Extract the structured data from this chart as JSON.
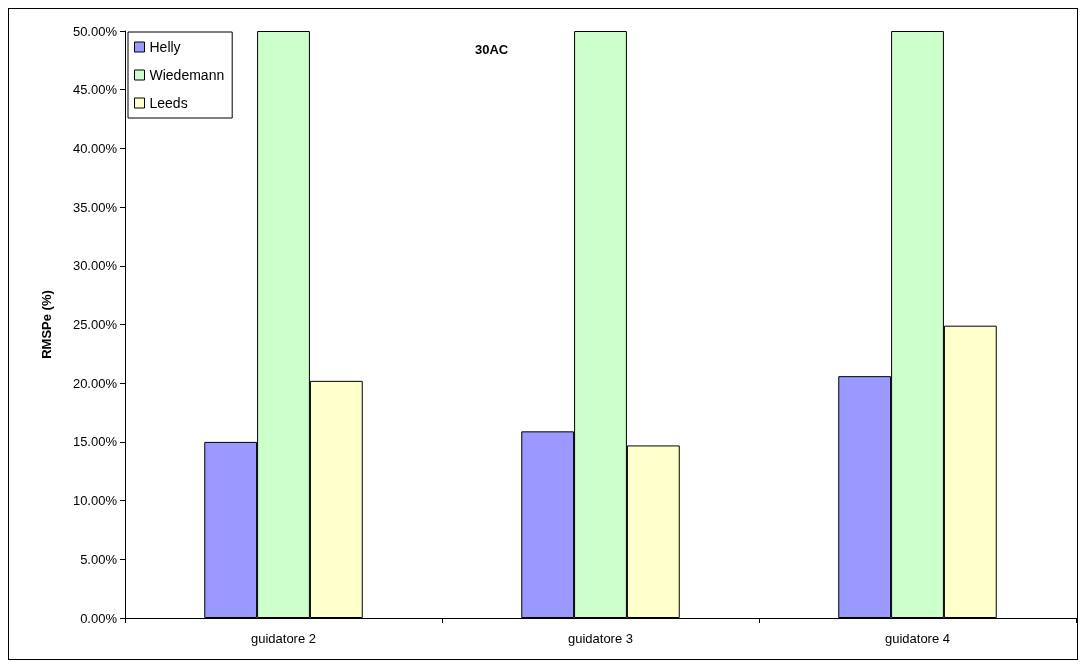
{
  "chart_data": {
    "type": "bar",
    "title": "30AC",
    "ylabel": "RMSPe (%)",
    "categories": [
      "guidatore 2",
      "guidatore 3",
      "guidatore 4"
    ],
    "series": [
      {
        "name": "Helly",
        "color": "#9999ff",
        "values": [
          15.0,
          15.9,
          20.6
        ]
      },
      {
        "name": "Wiedemann",
        "color": "#ccffcc",
        "values": [
          50,
          50,
          50
        ]
      },
      {
        "name": "Leeds",
        "color": "#ffffcc",
        "values": [
          20.2,
          14.7,
          24.9
        ]
      }
    ],
    "ylim": [
      0,
      50
    ],
    "yticks": [
      {
        "value": 0,
        "label": "0.00%"
      },
      {
        "value": 5,
        "label": "5.00%"
      },
      {
        "value": 10,
        "label": "10.00%"
      },
      {
        "value": 15,
        "label": "15.00%"
      },
      {
        "value": 20,
        "label": "20.00%"
      },
      {
        "value": 25,
        "label": "25.00%"
      },
      {
        "value": 30,
        "label": "30.00%"
      },
      {
        "value": 35,
        "label": "35.00%"
      },
      {
        "value": 40,
        "label": "40.00%"
      },
      {
        "value": 45,
        "label": "45.00%"
      },
      {
        "value": 50,
        "label": "50.00%"
      }
    ],
    "grid": false,
    "legend": "top left"
  }
}
